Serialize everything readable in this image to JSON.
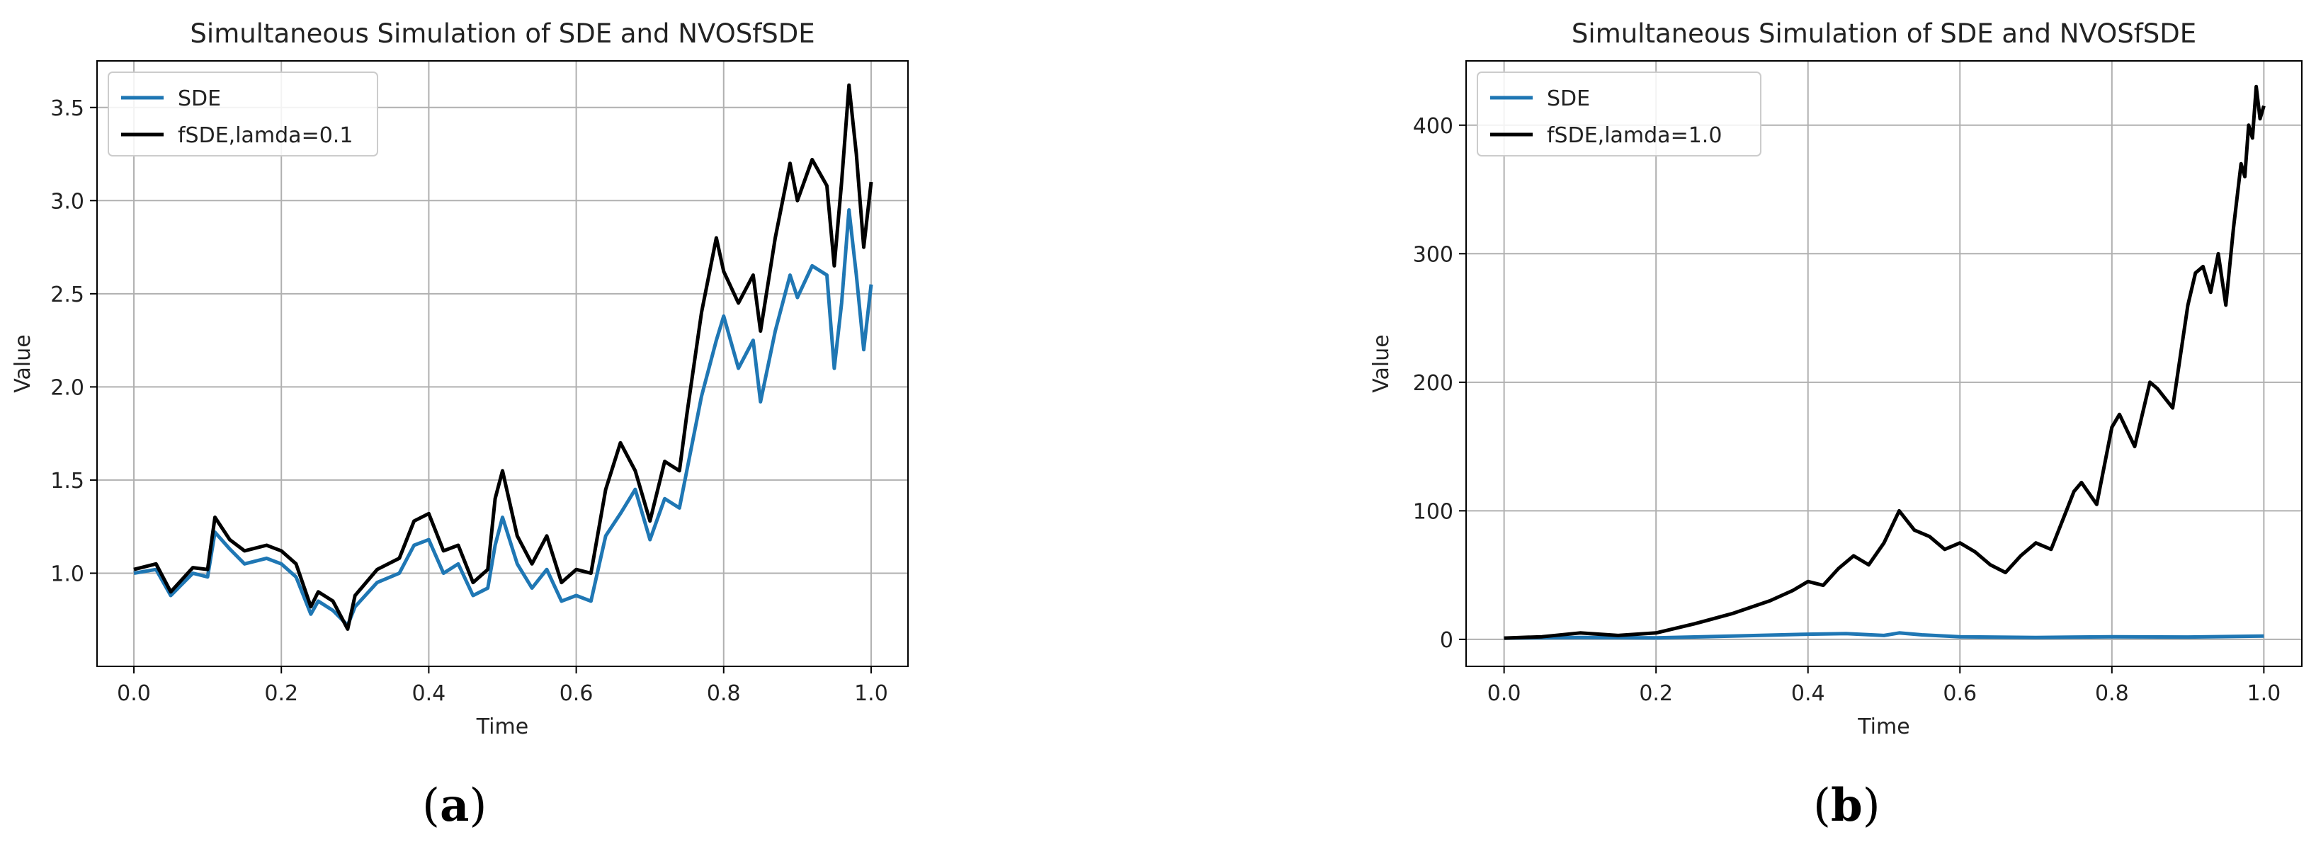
{
  "panels": [
    {
      "caption_letter": "a"
    },
    {
      "caption_letter": "b"
    }
  ],
  "chart_data": [
    {
      "type": "line",
      "title": "Simultaneous Simulation of SDE and NVOSfSDE",
      "xlabel": "Time",
      "ylabel": "Value",
      "xlim": [
        -0.05,
        1.05
      ],
      "ylim": [
        0.5,
        3.75
      ],
      "xticks": [
        0.0,
        0.2,
        0.4,
        0.6,
        0.8,
        1.0
      ],
      "xtick_labels": [
        "0.0",
        "0.2",
        "0.4",
        "0.6",
        "0.8",
        "1.0"
      ],
      "yticks": [
        1.0,
        1.5,
        2.0,
        2.5,
        3.0,
        3.5
      ],
      "ytick_labels": [
        "1.0",
        "1.5",
        "2.0",
        "2.5",
        "3.0",
        "3.5"
      ],
      "grid": true,
      "legend_position": "top-left",
      "series": [
        {
          "name": "SDE",
          "color": "#1f77b4",
          "x": [
            0.0,
            0.03,
            0.05,
            0.08,
            0.1,
            0.11,
            0.13,
            0.15,
            0.18,
            0.2,
            0.22,
            0.24,
            0.25,
            0.27,
            0.29,
            0.3,
            0.33,
            0.36,
            0.38,
            0.4,
            0.42,
            0.44,
            0.46,
            0.48,
            0.49,
            0.5,
            0.52,
            0.54,
            0.56,
            0.58,
            0.6,
            0.62,
            0.64,
            0.66,
            0.68,
            0.7,
            0.72,
            0.74,
            0.75,
            0.77,
            0.79,
            0.8,
            0.82,
            0.84,
            0.85,
            0.87,
            0.89,
            0.9,
            0.92,
            0.94,
            0.95,
            0.96,
            0.97,
            0.98,
            0.99,
            1.0
          ],
          "y": [
            1.0,
            1.02,
            0.88,
            1.0,
            0.98,
            1.22,
            1.13,
            1.05,
            1.08,
            1.05,
            0.98,
            0.78,
            0.85,
            0.8,
            0.72,
            0.82,
            0.95,
            1.0,
            1.15,
            1.18,
            1.0,
            1.05,
            0.88,
            0.92,
            1.15,
            1.3,
            1.05,
            0.92,
            1.02,
            0.85,
            0.88,
            0.85,
            1.2,
            1.32,
            1.45,
            1.18,
            1.4,
            1.35,
            1.55,
            1.95,
            2.25,
            2.38,
            2.1,
            2.25,
            1.92,
            2.3,
            2.6,
            2.48,
            2.65,
            2.6,
            2.1,
            2.45,
            2.95,
            2.6,
            2.2,
            2.55
          ]
        },
        {
          "name": "fSDE,lamda=0.1",
          "color": "#000000",
          "x": [
            0.0,
            0.03,
            0.05,
            0.08,
            0.1,
            0.11,
            0.13,
            0.15,
            0.18,
            0.2,
            0.22,
            0.24,
            0.25,
            0.27,
            0.29,
            0.3,
            0.33,
            0.36,
            0.38,
            0.4,
            0.42,
            0.44,
            0.46,
            0.48,
            0.49,
            0.5,
            0.52,
            0.54,
            0.56,
            0.58,
            0.6,
            0.62,
            0.64,
            0.66,
            0.68,
            0.7,
            0.72,
            0.74,
            0.75,
            0.77,
            0.79,
            0.8,
            0.82,
            0.84,
            0.85,
            0.87,
            0.89,
            0.9,
            0.92,
            0.94,
            0.95,
            0.96,
            0.97,
            0.98,
            0.99,
            1.0
          ],
          "y": [
            1.02,
            1.05,
            0.9,
            1.03,
            1.02,
            1.3,
            1.18,
            1.12,
            1.15,
            1.12,
            1.05,
            0.82,
            0.9,
            0.85,
            0.7,
            0.88,
            1.02,
            1.08,
            1.28,
            1.32,
            1.12,
            1.15,
            0.95,
            1.02,
            1.4,
            1.55,
            1.2,
            1.05,
            1.2,
            0.95,
            1.02,
            1.0,
            1.45,
            1.7,
            1.55,
            1.28,
            1.6,
            1.55,
            1.85,
            2.4,
            2.8,
            2.62,
            2.45,
            2.6,
            2.3,
            2.8,
            3.2,
            3.0,
            3.22,
            3.08,
            2.65,
            3.1,
            3.62,
            3.25,
            2.75,
            3.1
          ]
        }
      ]
    },
    {
      "type": "line",
      "title": "Simultaneous Simulation of SDE and NVOSfSDE",
      "xlabel": "Time",
      "ylabel": "Value",
      "xlim": [
        -0.05,
        1.05
      ],
      "ylim": [
        -21,
        450
      ],
      "xticks": [
        0.0,
        0.2,
        0.4,
        0.6,
        0.8,
        1.0
      ],
      "xtick_labels": [
        "0.0",
        "0.2",
        "0.4",
        "0.6",
        "0.8",
        "1.0"
      ],
      "yticks": [
        0,
        100,
        200,
        300,
        400
      ],
      "ytick_labels": [
        "0",
        "100",
        "200",
        "300",
        "400"
      ],
      "grid": true,
      "legend_position": "top-left",
      "series": [
        {
          "name": "SDE",
          "color": "#1f77b4",
          "x": [
            0.0,
            0.1,
            0.2,
            0.3,
            0.4,
            0.45,
            0.5,
            0.52,
            0.55,
            0.6,
            0.7,
            0.8,
            0.9,
            1.0
          ],
          "y": [
            1,
            1.5,
            1.2,
            2.5,
            4,
            4.5,
            3,
            5,
            3.5,
            2,
            1.5,
            2,
            1.8,
            2.5
          ]
        },
        {
          "name": "fSDE,lamda=1.0",
          "color": "#000000",
          "x": [
            0.0,
            0.05,
            0.1,
            0.15,
            0.2,
            0.25,
            0.3,
            0.35,
            0.38,
            0.4,
            0.42,
            0.44,
            0.46,
            0.48,
            0.5,
            0.52,
            0.54,
            0.56,
            0.58,
            0.6,
            0.62,
            0.64,
            0.66,
            0.68,
            0.7,
            0.72,
            0.74,
            0.75,
            0.76,
            0.78,
            0.8,
            0.81,
            0.83,
            0.85,
            0.86,
            0.88,
            0.9,
            0.91,
            0.92,
            0.93,
            0.94,
            0.95,
            0.96,
            0.97,
            0.975,
            0.98,
            0.985,
            0.99,
            0.995,
            1.0
          ],
          "y": [
            1,
            2,
            5,
            3,
            5,
            12,
            20,
            30,
            38,
            45,
            42,
            55,
            65,
            58,
            75,
            100,
            85,
            80,
            70,
            75,
            68,
            58,
            52,
            65,
            75,
            70,
            100,
            115,
            122,
            105,
            165,
            175,
            150,
            200,
            195,
            180,
            260,
            285,
            290,
            270,
            300,
            260,
            320,
            370,
            360,
            400,
            390,
            430,
            405,
            415
          ]
        }
      ]
    }
  ]
}
